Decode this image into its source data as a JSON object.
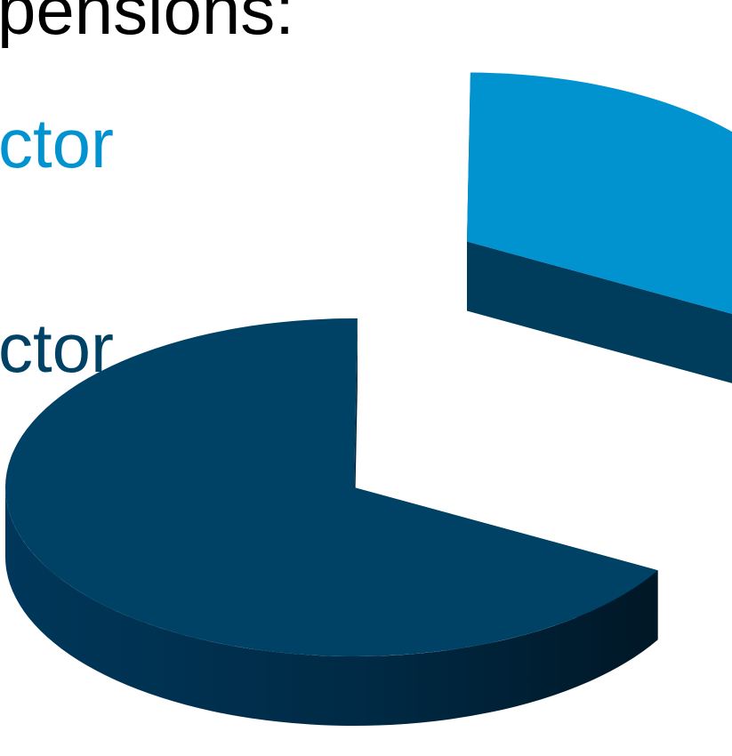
{
  "title_fragment": "pensions:",
  "chart_data": {
    "type": "pie",
    "style": "3d-exploded",
    "slices": [
      {
        "label": "ctor",
        "value": 33,
        "color": "#0093d0",
        "side_color": "#003d5c",
        "exploded": true
      },
      {
        "label": "ctor",
        "value": 67,
        "color": "#004166",
        "side_color": "#00263d",
        "exploded": false
      }
    ]
  }
}
